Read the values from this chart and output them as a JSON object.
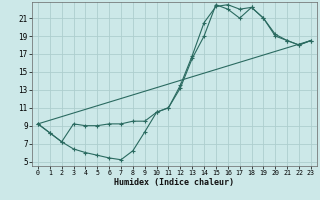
{
  "xlabel": "Humidex (Indice chaleur)",
  "xlim": [
    -0.5,
    23.5
  ],
  "ylim": [
    4.5,
    22.8
  ],
  "yticks": [
    5,
    7,
    9,
    11,
    13,
    15,
    17,
    19,
    21
  ],
  "xticks": [
    0,
    1,
    2,
    3,
    4,
    5,
    6,
    7,
    8,
    9,
    10,
    11,
    12,
    13,
    14,
    15,
    16,
    17,
    18,
    19,
    20,
    21,
    22,
    23
  ],
  "bg_color": "#cce8e8",
  "grid_color": "#aecece",
  "line_color": "#2a6a60",
  "line1_x": [
    0,
    1,
    2,
    3,
    4,
    5,
    6,
    7,
    8,
    9,
    10,
    11,
    12,
    13,
    14,
    15,
    16,
    17,
    18,
    19,
    20,
    21,
    22,
    23
  ],
  "line1_y": [
    9.2,
    8.2,
    7.2,
    9.2,
    9.0,
    9.0,
    9.2,
    9.2,
    9.5,
    9.5,
    10.5,
    11.0,
    13.2,
    16.5,
    19.0,
    22.5,
    22.0,
    21.0,
    22.2,
    21.0,
    19.2,
    18.5,
    18.0,
    18.5
  ],
  "line2_x": [
    0,
    1,
    2,
    3,
    4,
    5,
    6,
    7,
    8,
    9,
    10,
    11,
    12,
    13,
    14,
    15,
    16,
    17,
    18,
    19,
    20,
    21,
    22,
    23
  ],
  "line2_y": [
    9.2,
    8.2,
    7.2,
    6.4,
    6.0,
    5.7,
    5.4,
    5.2,
    6.2,
    8.3,
    10.5,
    11.0,
    13.5,
    16.8,
    20.5,
    22.3,
    22.5,
    22.0,
    22.2,
    21.0,
    19.0,
    18.5,
    18.0,
    18.5
  ],
  "line3_x": [
    0,
    23
  ],
  "line3_y": [
    9.2,
    18.5
  ]
}
